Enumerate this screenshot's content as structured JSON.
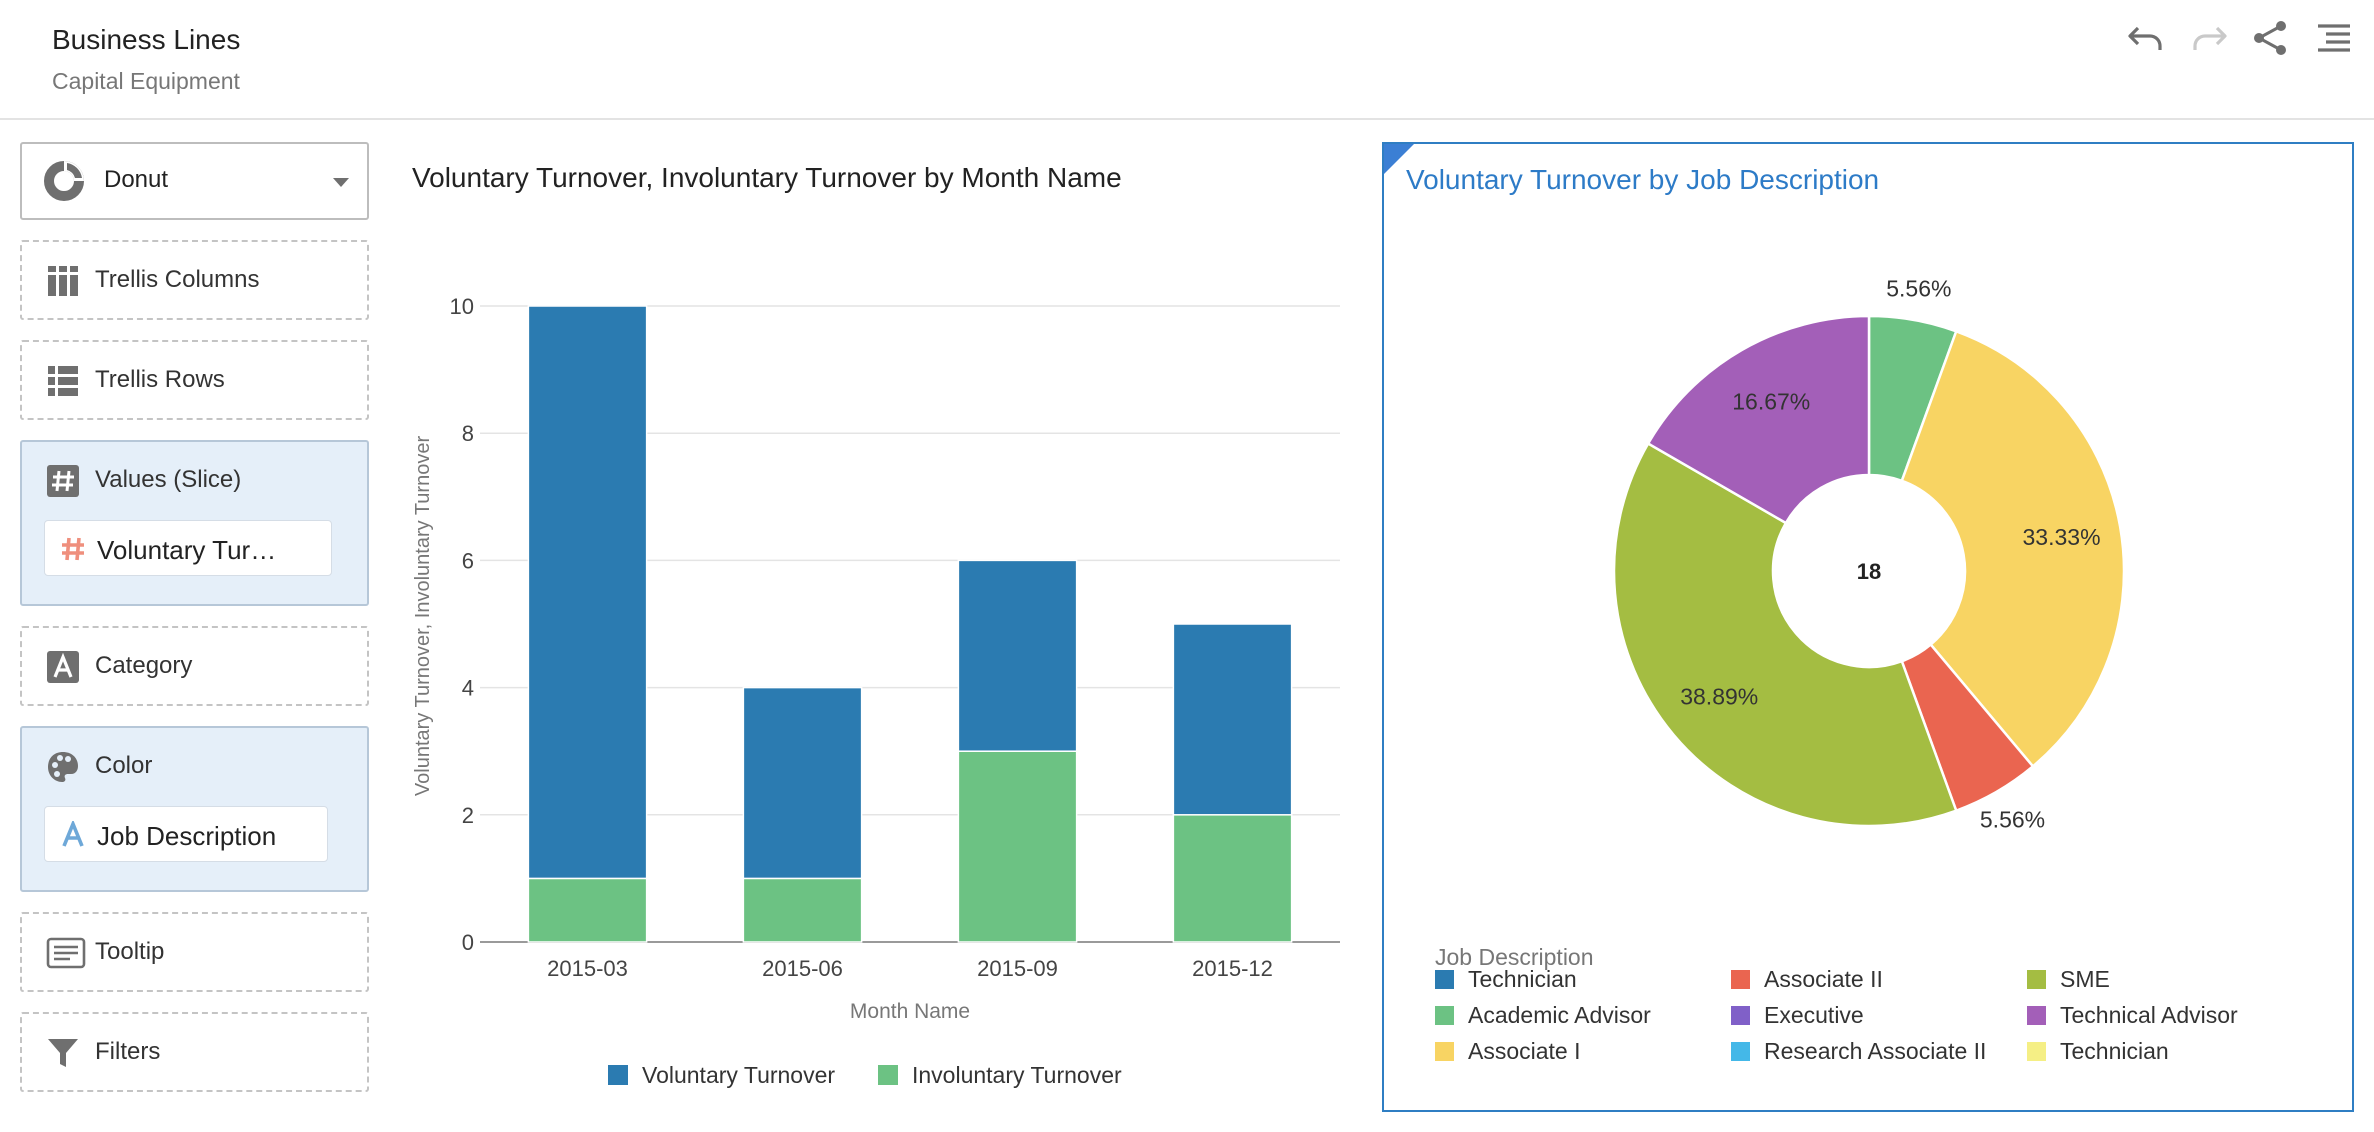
{
  "header": {
    "title": "Business Lines",
    "subtitle": "Capital Equipment",
    "icons": [
      "undo-icon",
      "redo-icon",
      "share-icon",
      "menu-icon"
    ]
  },
  "left_panel": {
    "chart_type": "Donut",
    "wells": {
      "trellis_columns": "Trellis Columns",
      "trellis_rows": "Trellis Rows",
      "values_slice": "Values (Slice)",
      "values_slice_chip": "Voluntary Tur…",
      "category": "Category",
      "color": "Color",
      "color_chip": "Job Description",
      "tooltip": "Tooltip",
      "filters": "Filters"
    }
  },
  "colors": {
    "voluntary": "#2b7bb1",
    "involuntary": "#6cc283",
    "accent": "#2f7ec3"
  },
  "bar_chart": {
    "title": "Voluntary Turnover, Involuntary Turnover by Month Name"
  },
  "chart_data": [
    {
      "type": "bar",
      "stacked": true,
      "title": "Voluntary Turnover, Involuntary Turnover by Month Name",
      "xlabel": "Month Name",
      "ylabel": "Voluntary Turnover, Involuntary Turnover",
      "categories": [
        "2015-03",
        "2015-06",
        "2015-09",
        "2015-12"
      ],
      "series": [
        {
          "name": "Involuntary Turnover",
          "values": [
            1,
            1,
            3,
            2
          ],
          "color": "#6cc283"
        },
        {
          "name": "Voluntary Turnover",
          "values": [
            9,
            3,
            3,
            3
          ],
          "color": "#2b7bb1"
        }
      ],
      "ylim": [
        0,
        10
      ],
      "yticks": [
        0,
        2,
        4,
        6,
        8,
        10
      ],
      "legend": [
        "Voluntary Turnover",
        "Involuntary Turnover"
      ],
      "legend_position": "bottom",
      "grid": true
    },
    {
      "type": "pie",
      "donut": true,
      "title": "Voluntary Turnover by Job Description",
      "center_label": "18",
      "slices": [
        {
          "label": "Academic Advisor",
          "value": 1,
          "pct": "5.56%",
          "color": "#6cc283"
        },
        {
          "label": "Associate I",
          "value": 6,
          "pct": "33.33%",
          "color": "#f8d463"
        },
        {
          "label": "Associate II",
          "value": 1,
          "pct": "5.56%",
          "color": "#ea6550"
        },
        {
          "label": "SME",
          "value": 7,
          "pct": "38.89%",
          "color": "#a4bd42"
        },
        {
          "label": "Technical Advisor",
          "value": 3,
          "pct": "16.67%",
          "color": "#a35fb8"
        }
      ],
      "legend_title": "Job Description",
      "legend": [
        {
          "label": "Technician",
          "color": "#2b7bb1"
        },
        {
          "label": "Associate II",
          "color": "#ea6550"
        },
        {
          "label": "SME",
          "color": "#a4bd42"
        },
        {
          "label": "Academic Advisor",
          "color": "#6cc283"
        },
        {
          "label": "Executive",
          "color": "#8060c8"
        },
        {
          "label": "Technical Advisor",
          "color": "#a35fb8"
        },
        {
          "label": "Associate I",
          "color": "#f8d463"
        },
        {
          "label": "Research Associate II",
          "color": "#44b8e8"
        },
        {
          "label": "Technician",
          "color": "#f5ef85"
        }
      ],
      "legend_position": "bottom"
    }
  ]
}
